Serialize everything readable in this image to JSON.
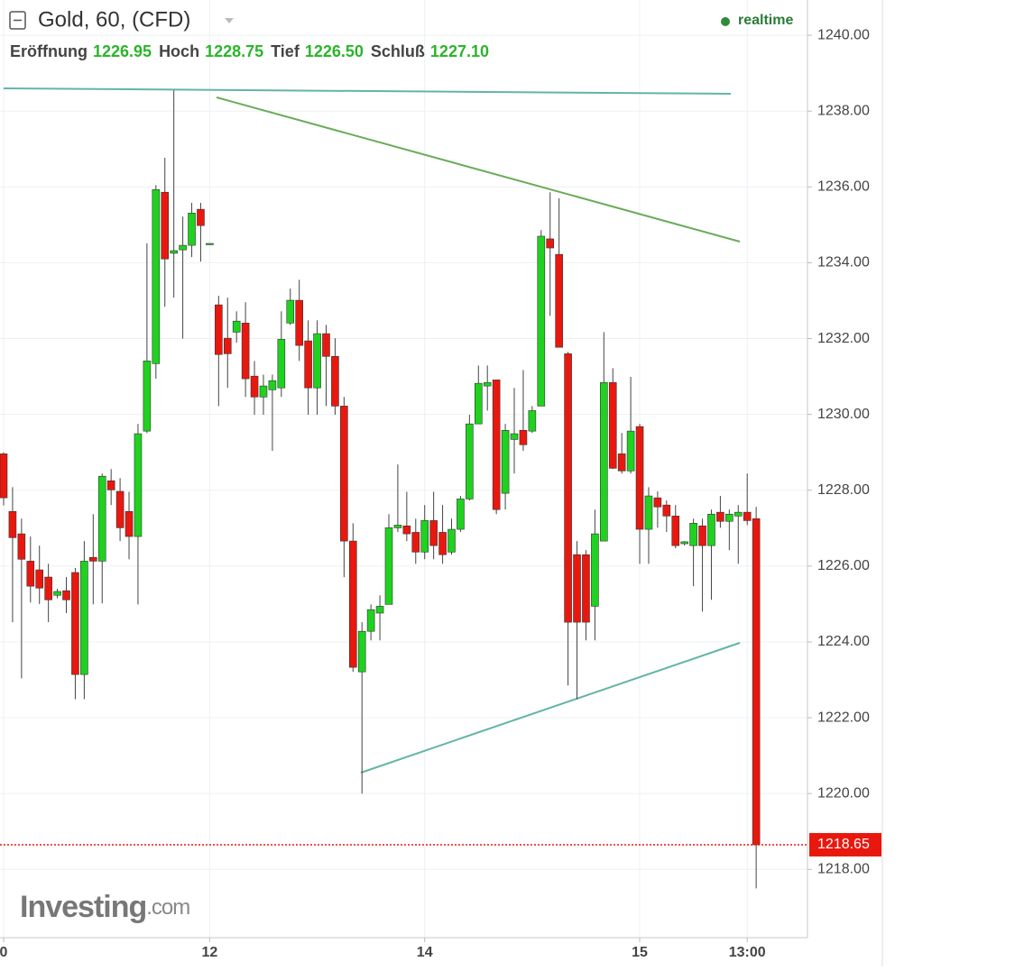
{
  "chart_data": {
    "type": "candlestick",
    "title": "Gold, 60, (CFD)",
    "status": "realtime",
    "ohlc_header": [
      {
        "label": "Eröffnung",
        "value": "1226.95"
      },
      {
        "label": "Hoch",
        "value": "1228.75"
      },
      {
        "label": "Tief",
        "value": "1226.50"
      },
      {
        "label": "Schluß",
        "value": "1227.10"
      }
    ],
    "watermark": "Investing",
    "watermark_suffix": ".com",
    "up_color": "#1fd21f",
    "down_color": "#e8180f",
    "grid": true,
    "last_price": 1218.65,
    "last_price_color": "#e8180f",
    "ylim": [
      1216.2,
      1240.93
    ],
    "yticks": [
      {
        "value": 1218,
        "label": "1218.00"
      },
      {
        "value": 1220,
        "label": "1220.00"
      },
      {
        "value": 1222,
        "label": "1222.00"
      },
      {
        "value": 1224,
        "label": "1224.00"
      },
      {
        "value": 1226,
        "label": "1226.00"
      },
      {
        "value": 1228,
        "label": "1228.00"
      },
      {
        "value": 1230,
        "label": "1230.00"
      },
      {
        "value": 1232,
        "label": "1232.00"
      },
      {
        "value": 1234,
        "label": "1234.00"
      },
      {
        "value": 1236,
        "label": "1236.00"
      },
      {
        "value": 1238,
        "label": "1238.00"
      },
      {
        "value": 1240,
        "label": "1240.00"
      }
    ],
    "categories": [
      "0",
      null,
      null,
      null,
      null,
      null,
      null,
      null,
      null,
      null,
      null,
      null,
      null,
      null,
      null,
      null,
      null,
      null,
      null,
      null,
      null,
      null,
      null,
      "12",
      null,
      null,
      null,
      null,
      null,
      null,
      null,
      null,
      null,
      null,
      null,
      null,
      null,
      null,
      null,
      null,
      null,
      null,
      null,
      null,
      null,
      null,
      null,
      "14",
      null,
      null,
      null,
      null,
      null,
      null,
      null,
      null,
      null,
      null,
      null,
      null,
      null,
      null,
      null,
      null,
      null,
      null,
      null,
      null,
      null,
      null,
      null,
      "15",
      null,
      null,
      null,
      null,
      null,
      null,
      null,
      null,
      null,
      null,
      null,
      "13:00",
      null
    ],
    "open": [
      1228.96,
      1227.44,
      1226.85,
      1226.13,
      1225.9,
      1225.71,
      1225.23,
      1225.35,
      1225.83,
      1223.14,
      1226.23,
      1226.13,
      1228.25,
      1227.97,
      1227.44,
      1226.78,
      1229.56,
      1231.34,
      1235.86,
      1234.25,
      1234.34,
      1234.46,
      1235.41,
      1234.49,
      1232.89,
      1232.01,
      1232.17,
      1232.41,
      1231.01,
      1230.46,
      1230.65,
      1230.7,
      1232.41,
      1233.01,
      1231.94,
      1230.7,
      1232.13,
      1231.53,
      1230.22,
      1226.66,
      1223.21,
      1224.28,
      1224.76,
      1224.99,
      1227.01,
      1227.06,
      1226.89,
      1226.37,
      1227.2,
      1226.89,
      1226.37,
      1226.97,
      1227.77,
      1229.75,
      1230.75,
      1230.91,
      1227.92,
      1229.34,
      1229.58,
      1229.56,
      1230.22,
      1234.63,
      1234.22,
      1231.6,
      1226.3,
      1226.3,
      1224.94,
      1226.66,
      1230.84,
      1228.96,
      1228.51,
      1229.68,
      1226.97,
      1227.8,
      1227.61,
      1227.32,
      1226.59,
      1226.54,
      1227.06,
      1226.54,
      1227.42,
      1227.18,
      1227.32,
      1227.42,
      1227.25
    ],
    "high": [
      1229.0,
      1228.08,
      1227.25,
      1226.78,
      1226.54,
      1226.06,
      1225.4,
      1225.71,
      1225.95,
      1226.66,
      1227.37,
      1228.44,
      1228.56,
      1228.32,
      1227.96,
      1229.75,
      1234.51,
      1236.05,
      1236.77,
      1238.55,
      1235.22,
      1235.58,
      1235.58,
      1234.51,
      1233.13,
      1233.08,
      1232.72,
      1232.96,
      1231.41,
      1231.05,
      1231.05,
      1232.72,
      1233.32,
      1233.55,
      1232.48,
      1232.48,
      1232.36,
      1232.01,
      1230.46,
      1227.13,
      1224.52,
      1224.99,
      1225.23,
      1227.37,
      1228.68,
      1227.96,
      1227.25,
      1227.61,
      1227.96,
      1227.61,
      1227.25,
      1227.85,
      1229.99,
      1231.29,
      1231.29,
      1230.91,
      1229.75,
      1230.7,
      1231.17,
      1230.22,
      1234.86,
      1235.86,
      1235.7,
      1231.65,
      1226.66,
      1226.42,
      1227.49,
      1232.17,
      1231.22,
      1229.51,
      1230.99,
      1229.75,
      1228.08,
      1227.97,
      1227.73,
      1227.61,
      1226.66,
      1227.25,
      1227.25,
      1227.49,
      1227.85,
      1227.49,
      1227.61,
      1228.44,
      1227.56
    ],
    "low": [
      1227.6,
      1224.52,
      1223.04,
      1225.04,
      1225.0,
      1224.52,
      1225.15,
      1224.76,
      1222.49,
      1222.49,
      1224.99,
      1225.02,
      1227.61,
      1226.66,
      1226.18,
      1224.99,
      1229.51,
      1230.94,
      1232.84,
      1233.08,
      1232.0,
      1234.15,
      1234.03,
      1234.49,
      1230.22,
      1230.7,
      1231.89,
      1230.46,
      1229.99,
      1229.99,
      1229.04,
      1230.46,
      1232.36,
      1231.41,
      1229.99,
      1229.99,
      1230.22,
      1229.99,
      1225.71,
      1223.21,
      1220.0,
      1224.04,
      1224.04,
      1224.99,
      1226.9,
      1226.66,
      1226.06,
      1226.18,
      1226.18,
      1226.06,
      1226.3,
      1226.9,
      1227.73,
      1229.75,
      1230.1,
      1227.37,
      1227.49,
      1228.44,
      1229.04,
      1229.51,
      1230.22,
      1232.6,
      1231.77,
      1222.85,
      1222.49,
      1224.04,
      1224.04,
      1226.66,
      1228.56,
      1228.44,
      1228.44,
      1226.06,
      1226.06,
      1227.01,
      1226.9,
      1226.47,
      1226.54,
      1225.47,
      1224.8,
      1225.11,
      1227.01,
      1226.42,
      1226.06,
      1227.08,
      1217.5
    ],
    "close": [
      1227.8,
      1226.75,
      1226.18,
      1225.47,
      1225.42,
      1225.11,
      1225.33,
      1225.11,
      1223.14,
      1226.13,
      1226.13,
      1228.37,
      1228.01,
      1227.01,
      1226.78,
      1229.49,
      1231.41,
      1235.93,
      1234.1,
      1234.32,
      1234.46,
      1235.31,
      1234.98,
      1234.51,
      1231.58,
      1231.6,
      1232.46,
      1230.94,
      1230.46,
      1230.75,
      1230.89,
      1231.98,
      1233.01,
      1231.82,
      1230.7,
      1232.13,
      1231.53,
      1230.22,
      1226.66,
      1223.33,
      1224.28,
      1224.85,
      1224.94,
      1227.01,
      1227.08,
      1226.85,
      1226.37,
      1227.2,
      1226.54,
      1226.3,
      1226.97,
      1227.77,
      1229.75,
      1230.82,
      1230.84,
      1227.49,
      1229.58,
      1229.49,
      1229.2,
      1230.1,
      1234.7,
      1234.39,
      1231.77,
      1224.52,
      1224.52,
      1224.52,
      1226.85,
      1230.84,
      1228.58,
      1228.51,
      1229.56,
      1226.97,
      1227.85,
      1227.56,
      1227.32,
      1226.54,
      1226.64,
      1227.13,
      1226.54,
      1227.37,
      1227.18,
      1227.37,
      1227.42,
      1227.2,
      1218.65
    ]
  }
}
